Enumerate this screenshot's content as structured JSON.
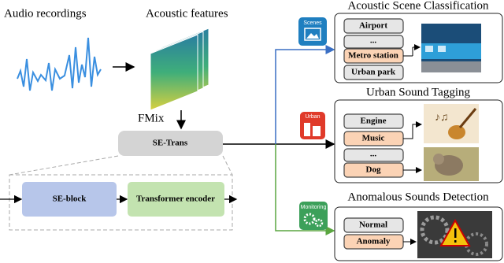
{
  "inputs": {
    "audio": "Audio recordings",
    "features": "Acoustic features",
    "augmentation": "FMix"
  },
  "model": {
    "name": "SE-Trans",
    "blocks": [
      "SE-block",
      "Transformer encoder"
    ]
  },
  "tasks": [
    {
      "icon_label": "Scenes",
      "title": "Acoustic Scene Classification",
      "labels": [
        "Airport",
        "...",
        "Metro station",
        "Urban park"
      ]
    },
    {
      "icon_label": "Urban",
      "title": "Urban Sound Tagging",
      "labels": [
        "Engine",
        "Music",
        "...",
        "Dog"
      ]
    },
    {
      "icon_label": "Monitoring",
      "title": "Anomalous Sounds Detection",
      "labels": [
        "Normal",
        "Anomaly"
      ]
    }
  ]
}
